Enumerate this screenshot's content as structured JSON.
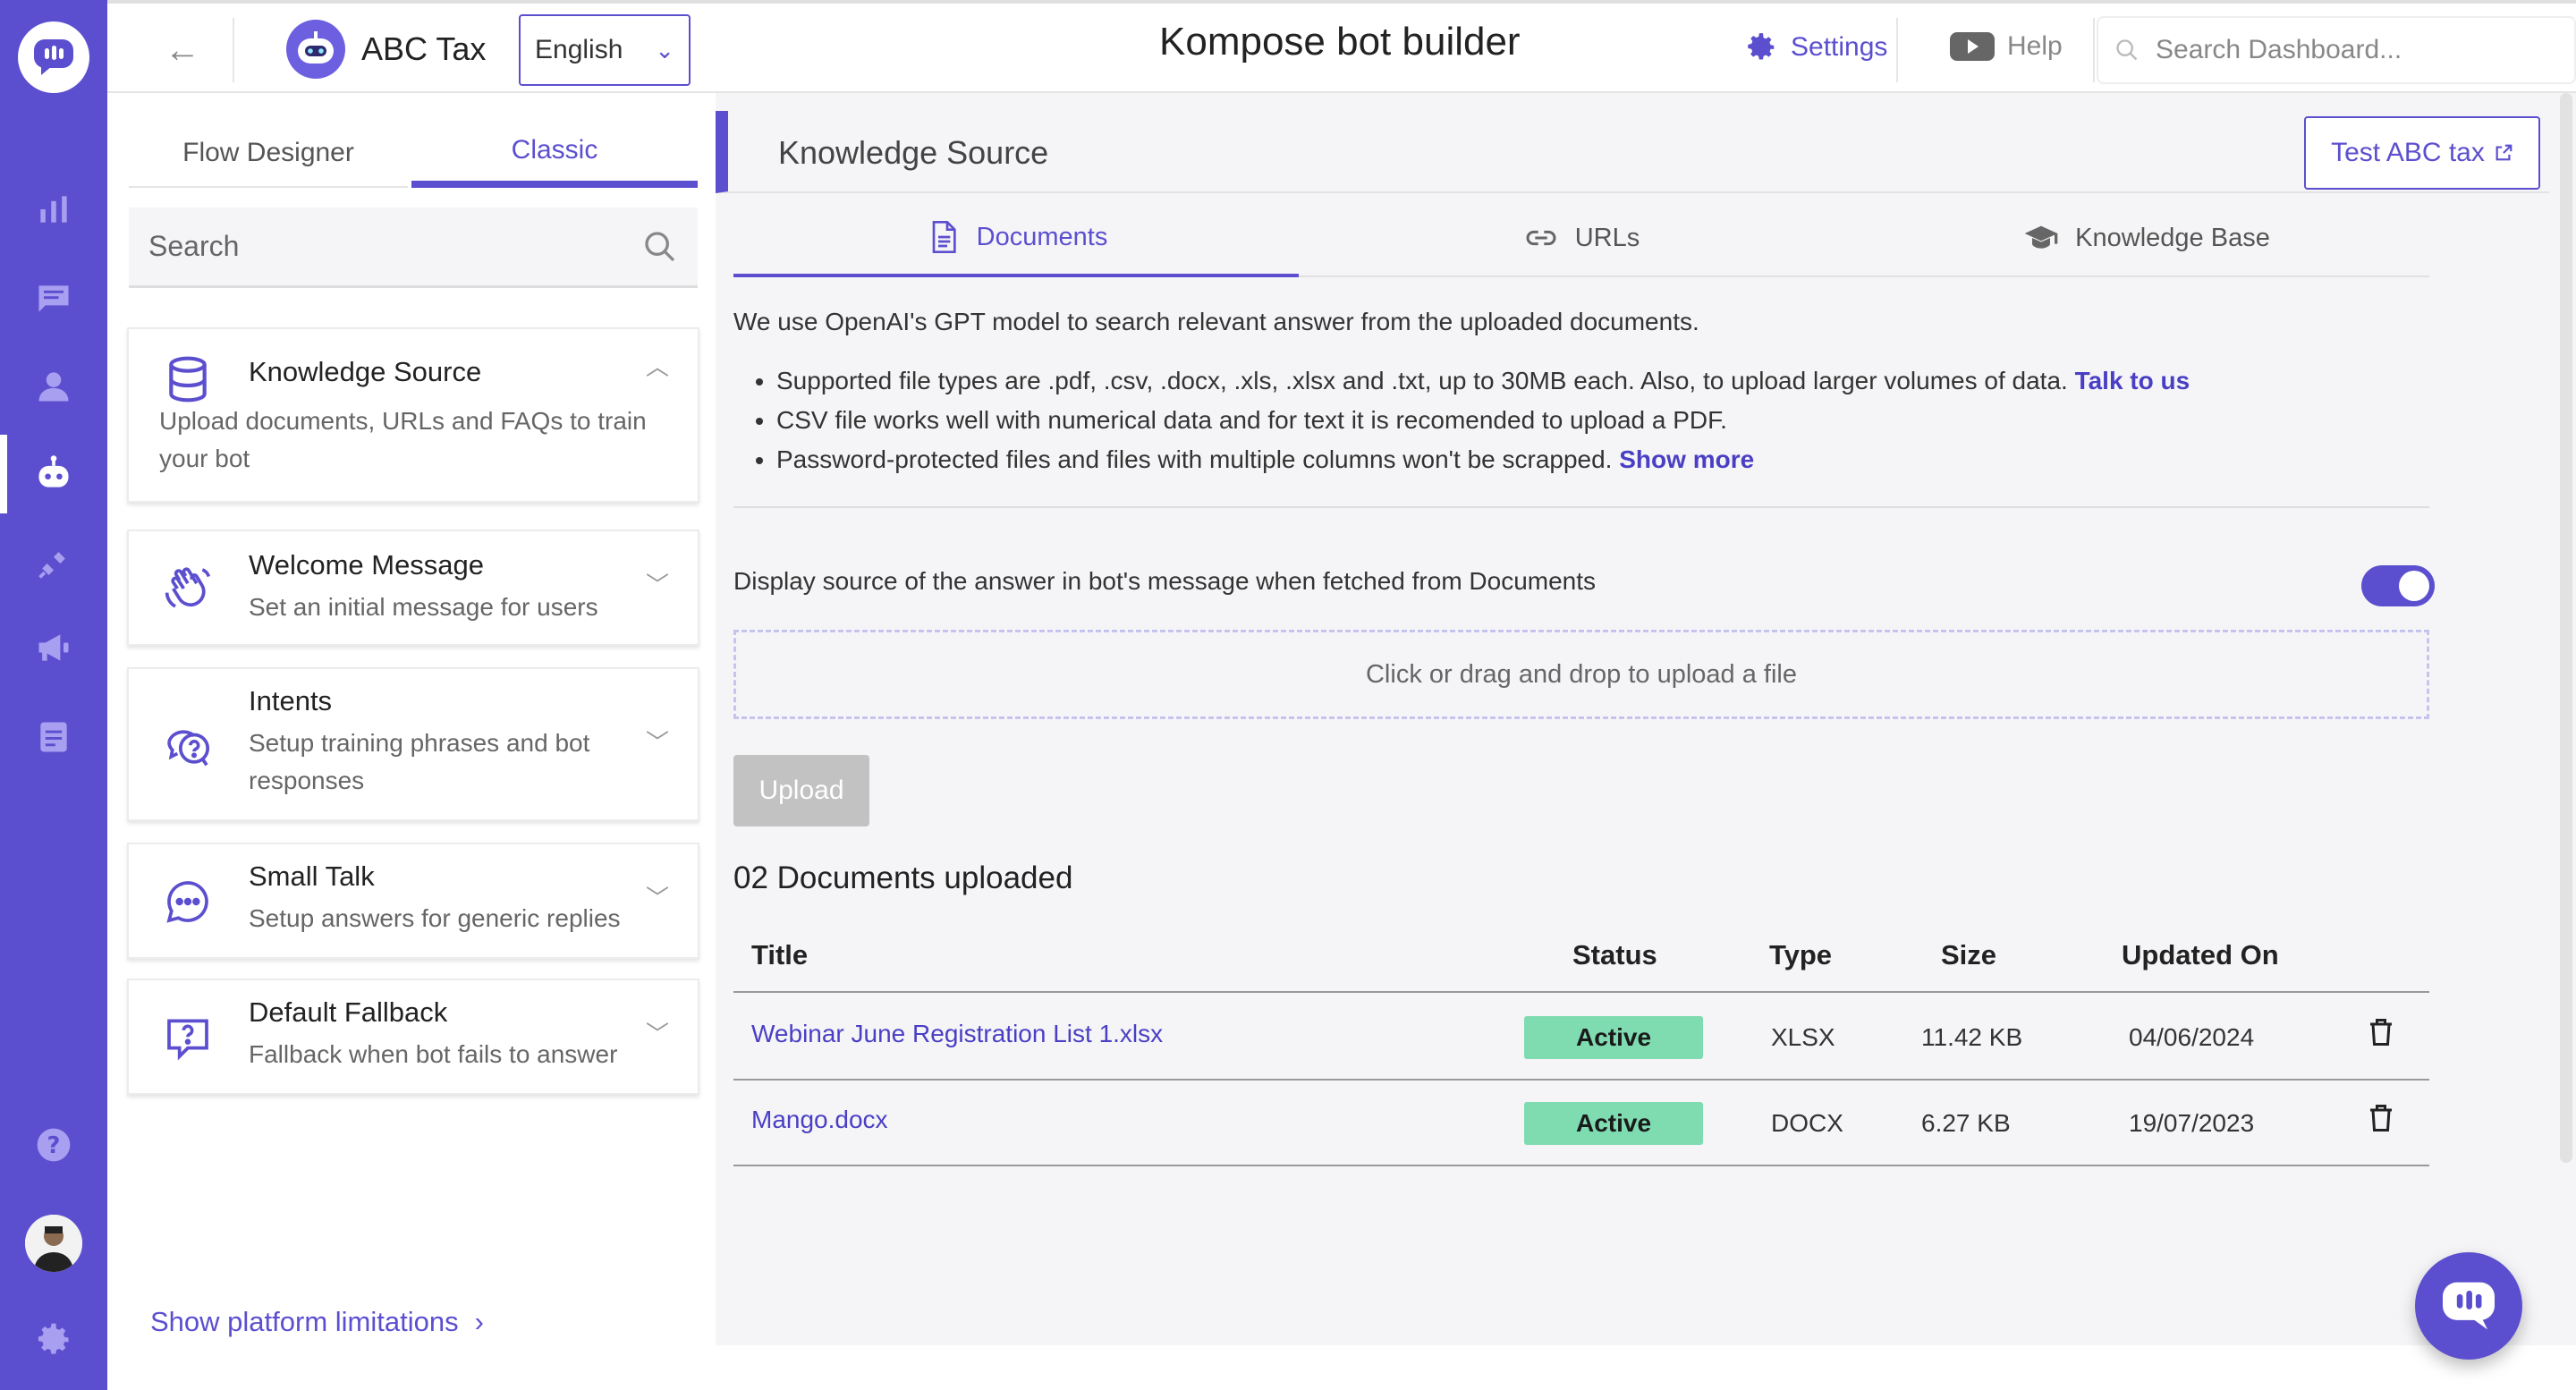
{
  "header": {
    "bot_name": "ABC Tax",
    "language": "English",
    "page_title": "Kompose bot builder",
    "settings_label": "Settings",
    "help_label": "Help",
    "search_placeholder": "Search Dashboard..."
  },
  "left_panel": {
    "tabs": [
      "Flow Designer",
      "Classic"
    ],
    "active_tab": "Classic",
    "search_placeholder": "Search",
    "cards": [
      {
        "title": "Knowledge Source",
        "description": "Upload documents, URLs and FAQs to train your bot",
        "icon": "database-icon",
        "expanded": true
      },
      {
        "title": "Welcome Message",
        "description": "Set an initial message for users",
        "icon": "waving-hand-icon"
      },
      {
        "title": "Intents",
        "description": "Setup training phrases and bot responses",
        "icon": "chat-question-icon"
      },
      {
        "title": "Small Talk",
        "description": "Setup answers for generic replies",
        "icon": "chat-bubble-icon"
      },
      {
        "title": "Default Fallback",
        "description": "Fallback when bot fails to answer",
        "icon": "fallback-question-icon"
      }
    ],
    "show_limitations": "Show platform limitations"
  },
  "main": {
    "section_title": "Knowledge Source",
    "test_button": "Test ABC tax",
    "subtabs": [
      "Documents",
      "URLs",
      "Knowledge Base"
    ],
    "active_subtab": "Documents",
    "intro": "We use OpenAI's GPT model to search relevant answer from the uploaded documents.",
    "bullets": {
      "b1": "Supported file types are .pdf, .csv, .docx, .xls, .xlsx and .txt, up to 30MB each. Also, to upload larger volumes of data.",
      "b1_link": "Talk to us",
      "b2": "CSV file works well with numerical data and for text it is recomended to upload a PDF.",
      "b3": "Password-protected files and files with multiple columns won't be scrapped.",
      "b3_link": "Show more"
    },
    "display_source_label": "Display source of the answer in bot's message when fetched from Documents",
    "display_source_enabled": true,
    "dropzone_text": "Click or drag and drop to upload a file",
    "upload_button": "Upload",
    "docs_count": "02 Documents uploaded",
    "table": {
      "columns": [
        "Title",
        "Status",
        "Type",
        "Size",
        "Updated On"
      ],
      "rows": [
        {
          "title": "Webinar June Registration List 1.xlsx",
          "status": "Active",
          "type": "XLSX",
          "size": "11.42 KB",
          "updated": "04/06/2024"
        },
        {
          "title": "Mango.docx",
          "status": "Active",
          "type": "DOCX",
          "size": "6.27 KB",
          "updated": "19/07/2023"
        }
      ]
    }
  },
  "colors": {
    "brand": "#5c4fcf",
    "status_active": "#7fdcb1",
    "link": "#4a3fc4"
  }
}
